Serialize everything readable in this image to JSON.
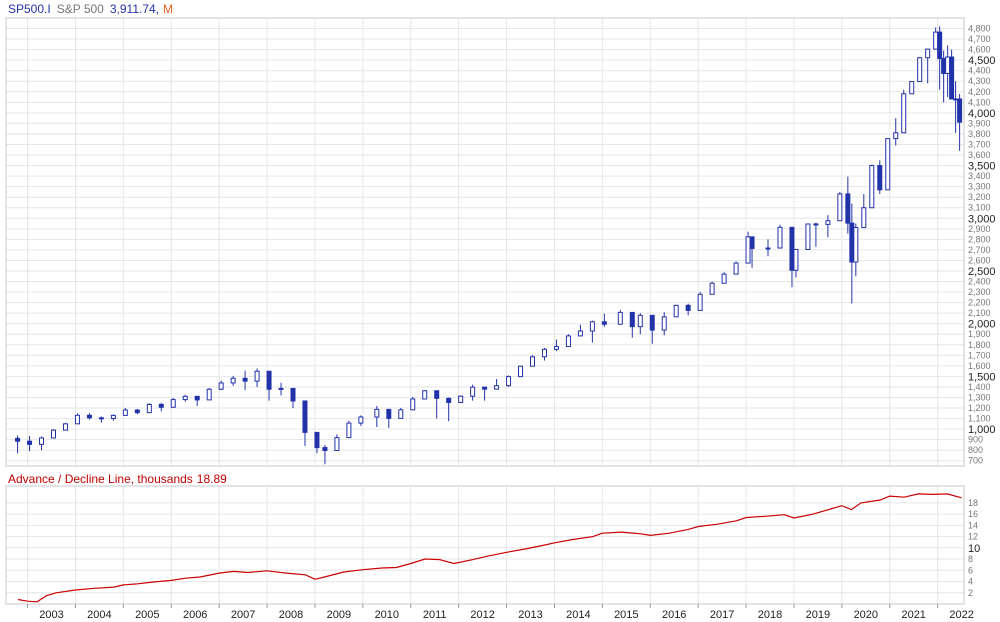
{
  "header": {
    "symbol": "SP500.I",
    "name": "S&P 500",
    "last": "3,911.74,",
    "period": "M"
  },
  "indicator": {
    "title": "Advance / Decline Line, thousands",
    "value": "18.89"
  },
  "colors": {
    "price": "#2233aa",
    "indicator": "#cc0000",
    "grid": "#e6e6e6",
    "frame": "#c8c8c8",
    "period": "#e06020"
  },
  "chart_data": [
    {
      "type": "candlestick",
      "title": "SP500.I S&P 500",
      "frequency": "monthly",
      "ylim": [
        650,
        4900
      ],
      "y_tick_labels": [
        "700",
        "800",
        "900",
        "1,000",
        "1,100",
        "1,200",
        "1,300",
        "1,400",
        "1,500",
        "1,600",
        "1,700",
        "1,800",
        "1,900",
        "2,000",
        "2,100",
        "2,200",
        "2,300",
        "2,400",
        "2,500",
        "2,600",
        "2,700",
        "2,800",
        "2,900",
        "3,000",
        "3,100",
        "3,200",
        "3,300",
        "3,400",
        "3,500",
        "3,600",
        "3,700",
        "3,800",
        "3,900",
        "4,000",
        "4,100",
        "4,200",
        "4,300",
        "4,400",
        "4,500",
        "4,600",
        "4,700",
        "4,800"
      ],
      "x": [
        "2002-10",
        "2003-01",
        "2003-04",
        "2003-07",
        "2003-10",
        "2004-01",
        "2004-04",
        "2004-07",
        "2004-10",
        "2005-01",
        "2005-04",
        "2005-07",
        "2005-10",
        "2006-01",
        "2006-04",
        "2006-07",
        "2006-10",
        "2007-01",
        "2007-04",
        "2007-07",
        "2007-10",
        "2008-01",
        "2008-04",
        "2008-07",
        "2008-10",
        "2009-01",
        "2009-03",
        "2009-06",
        "2009-09",
        "2009-12",
        "2010-04",
        "2010-07",
        "2010-10",
        "2011-01",
        "2011-04",
        "2011-07",
        "2011-10",
        "2012-01",
        "2012-04",
        "2012-07",
        "2012-10",
        "2013-01",
        "2013-04",
        "2013-07",
        "2013-10",
        "2014-01",
        "2014-04",
        "2014-07",
        "2014-10",
        "2015-01",
        "2015-05",
        "2015-08",
        "2015-10",
        "2016-01",
        "2016-04",
        "2016-07",
        "2016-10",
        "2017-01",
        "2017-04",
        "2017-07",
        "2017-10",
        "2018-01",
        "2018-02",
        "2018-06",
        "2018-09",
        "2018-12",
        "2019-01",
        "2019-04",
        "2019-06",
        "2019-09",
        "2019-12",
        "2020-02",
        "2020-03",
        "2020-04",
        "2020-06",
        "2020-08",
        "2020-10",
        "2020-12",
        "2021-02",
        "2021-04",
        "2021-06",
        "2021-08",
        "2021-10",
        "2021-12",
        "2022-01",
        "2022-02",
        "2022-03",
        "2022-04",
        "2022-05",
        "2022-06"
      ],
      "close": [
        885,
        855,
        916,
        990,
        1050,
        1131,
        1107,
        1101,
        1130,
        1181,
        1156,
        1234,
        1207,
        1280,
        1311,
        1277,
        1378,
        1438,
        1482,
        1455,
        1549,
        1378,
        1386,
        1267,
        969,
        825,
        797,
        919,
        1057,
        1115,
        1187,
        1102,
        1183,
        1286,
        1364,
        1292,
        1253,
        1312,
        1398,
        1379,
        1412,
        1498,
        1597,
        1686,
        1757,
        1783,
        1884,
        1931,
        2018,
        1995,
        2107,
        1972,
        2079,
        1940,
        2065,
        2174,
        2126,
        2279,
        2384,
        2470,
        2575,
        2824,
        2714,
        2718,
        2914,
        2507,
        2704,
        2946,
        2942,
        2977,
        3231,
        2954,
        2585,
        2912,
        3100,
        3500,
        3270,
        3756,
        3811,
        4181,
        4297,
        4523,
        4605,
        4766,
        4516,
        4374,
        4530,
        4132,
        4132,
        3912
      ],
      "high": [
        940,
        935,
        930,
        1000,
        1060,
        1150,
        1150,
        1120,
        1140,
        1200,
        1190,
        1245,
        1250,
        1295,
        1326,
        1300,
        1390,
        1460,
        1505,
        1555,
        1576,
        1470,
        1440,
        1350,
        1270,
        935,
        850,
        950,
        1080,
        1130,
        1220,
        1180,
        1200,
        1305,
        1370,
        1360,
        1300,
        1320,
        1422,
        1400,
        1475,
        1510,
        1600,
        1700,
        1770,
        1850,
        1900,
        1990,
        2030,
        2095,
        2130,
        2110,
        2100,
        2080,
        2110,
        2180,
        2190,
        2300,
        2400,
        2490,
        2590,
        2873,
        2790,
        2800,
        2940,
        2820,
        2710,
        2950,
        2960,
        3030,
        3250,
        3395,
        3140,
        2950,
        3230,
        3510,
        3550,
        3760,
        3950,
        4220,
        4300,
        4530,
        4610,
        4810,
        4820,
        4590,
        4640,
        4600,
        4300,
        4180
      ],
      "low": [
        770,
        790,
        800,
        930,
        990,
        1080,
        1090,
        1060,
        1080,
        1150,
        1140,
        1170,
        1170,
        1220,
        1260,
        1220,
        1290,
        1370,
        1410,
        1370,
        1400,
        1270,
        1320,
        1200,
        840,
        770,
        667,
        880,
        980,
        1030,
        1020,
        1010,
        1100,
        1260,
        1290,
        1100,
        1075,
        1250,
        1270,
        1270,
        1380,
        1400,
        1530,
        1600,
        1650,
        1740,
        1800,
        1900,
        1820,
        1970,
        2000,
        1867,
        1900,
        1810,
        1890,
        2080,
        2080,
        2200,
        2320,
        2400,
        2500,
        2700,
        2530,
        2640,
        2860,
        2346,
        2440,
        2820,
        2730,
        2820,
        3070,
        2855,
        2192,
        2450,
        3000,
        3250,
        3230,
        3630,
        3690,
        3900,
        4180,
        4370,
        4280,
        4600,
        4220,
        4100,
        4150,
        4130,
        3810,
        3640
      ]
    },
    {
      "type": "line",
      "title": "Advance / Decline Line, thousands",
      "series": [
        {
          "name": "Advance / Decline Line",
          "x": [
            2002.8,
            2003.0,
            2003.2,
            2003.4,
            2003.6,
            2004.0,
            2004.4,
            2004.8,
            2005.0,
            2005.3,
            2005.6,
            2006.0,
            2006.3,
            2006.6,
            2007.0,
            2007.3,
            2007.6,
            2008.0,
            2008.4,
            2008.8,
            2009.0,
            2009.2,
            2009.6,
            2010.0,
            2010.4,
            2010.7,
            2011.0,
            2011.3,
            2011.6,
            2011.9,
            2012.3,
            2012.6,
            2013.0,
            2013.4,
            2013.8,
            2014.0,
            2014.4,
            2014.8,
            2015.0,
            2015.4,
            2015.8,
            2016.0,
            2016.4,
            2016.8,
            2017.0,
            2017.4,
            2017.8,
            2018.0,
            2018.4,
            2018.8,
            2019.0,
            2019.4,
            2019.8,
            2020.0,
            2020.2,
            2020.4,
            2020.8,
            2021.0,
            2021.3,
            2021.6,
            2021.9,
            2022.2,
            2022.5
          ],
          "values": [
            0.8,
            0.5,
            0.4,
            1.5,
            2.0,
            2.5,
            2.8,
            3.0,
            3.4,
            3.6,
            3.9,
            4.2,
            4.6,
            4.8,
            5.5,
            5.8,
            5.6,
            5.9,
            5.5,
            5.2,
            4.4,
            4.8,
            5.7,
            6.1,
            6.4,
            6.5,
            7.2,
            8.0,
            7.9,
            7.2,
            7.9,
            8.5,
            9.2,
            9.8,
            10.5,
            10.9,
            11.5,
            12.0,
            12.6,
            12.8,
            12.5,
            12.2,
            12.6,
            13.3,
            13.8,
            14.2,
            14.8,
            15.4,
            15.6,
            15.9,
            15.3,
            16.0,
            17.0,
            17.5,
            16.8,
            18.0,
            18.5,
            19.2,
            19.0,
            19.6,
            19.5,
            19.6,
            18.9
          ]
        }
      ],
      "ylim": [
        0,
        21
      ],
      "y_tick_labels": [
        "2",
        "4",
        "6",
        "8",
        "10",
        "12",
        "14",
        "16",
        "18"
      ]
    }
  ],
  "x_axis": {
    "tick_labels": [
      "2003",
      "2004",
      "2005",
      "2006",
      "2007",
      "2008",
      "2009",
      "2010",
      "2011",
      "2012",
      "2013",
      "2014",
      "2015",
      "2016",
      "2017",
      "2018",
      "2019",
      "2020",
      "2021",
      "2022"
    ]
  }
}
